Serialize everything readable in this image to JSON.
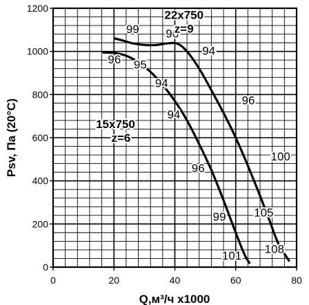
{
  "chart_data": {
    "type": "line",
    "xlabel": "Q,м³/ч x1000",
    "ylabel": "Psv, Па (20°C)",
    "xlim": [
      0,
      80
    ],
    "ylim": [
      0,
      1200
    ],
    "grid": true,
    "x_ticks": [
      "0",
      "20",
      "40",
      "60",
      "80"
    ],
    "y_ticks": [
      "0",
      "200",
      "400",
      "600",
      "800",
      "1000",
      "1200"
    ],
    "series": [
      {
        "name": "22x750 z=9",
        "label_lines": [
          "22x750",
          "z=9"
        ],
        "x": [
          20.3,
          23,
          26,
          30,
          34,
          38,
          41,
          44,
          48,
          52,
          56,
          60,
          64,
          68,
          71,
          74,
          77.5
        ],
        "y": [
          1060,
          1050,
          1038,
          1030,
          1030,
          1038,
          1035,
          1000,
          920,
          820,
          715,
          600,
          470,
          330,
          220,
          110,
          30
        ]
      },
      {
        "name": "15x750 z=6",
        "label_lines": [
          "15x750",
          "z=6"
        ],
        "x": [
          16.5,
          20,
          24,
          28,
          32,
          36,
          40,
          44,
          48,
          52,
          56,
          60,
          63,
          64.5
        ],
        "y": [
          995,
          993,
          980,
          950,
          905,
          845,
          770,
          680,
          570,
          450,
          310,
          160,
          55,
          20
        ]
      }
    ],
    "annotations": [
      {
        "text": "99",
        "x": 24,
        "y": 1085
      },
      {
        "text": "96",
        "x": 37,
        "y": 1065
      },
      {
        "text": "94",
        "x": 49,
        "y": 985
      },
      {
        "text": "96",
        "x": 62,
        "y": 755
      },
      {
        "text": "100",
        "x": 71.5,
        "y": 495
      },
      {
        "text": "105",
        "x": 66,
        "y": 235
      },
      {
        "text": "108",
        "x": 69.5,
        "y": 65
      },
      {
        "text": "96",
        "x": 18,
        "y": 945
      },
      {
        "text": "95",
        "x": 26.5,
        "y": 920
      },
      {
        "text": "94",
        "x": 33.5,
        "y": 835
      },
      {
        "text": "94",
        "x": 37.5,
        "y": 690
      },
      {
        "text": "96",
        "x": 45.5,
        "y": 440
      },
      {
        "text": "99",
        "x": 52.5,
        "y": 215
      },
      {
        "text": "101",
        "x": 55.5,
        "y": 35
      }
    ]
  }
}
